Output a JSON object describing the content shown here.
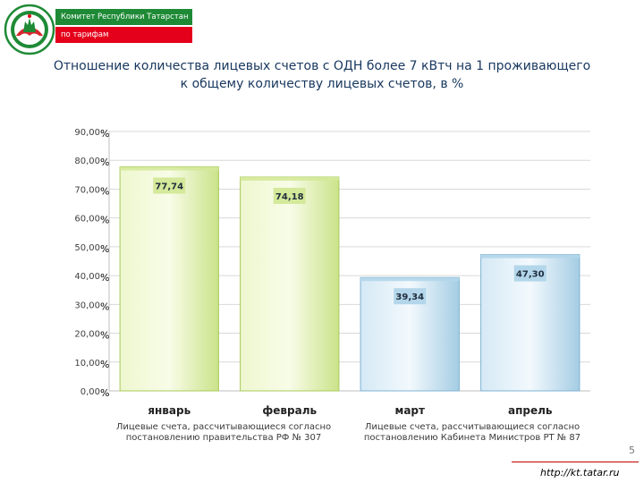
{
  "header": {
    "org_line1": "Комитет Республики Татарстан",
    "org_line2": "по тарифам"
  },
  "title": {
    "line1": "Отношение количества лицевых счетов с ОДН более 7 кВтч на 1 проживающего",
    "line2": "к общему количеству лицевых счетов, в %"
  },
  "chart_data": {
    "type": "bar",
    "categories": [
      "январь",
      "февраль",
      "март",
      "апрель"
    ],
    "values": [
      77.74,
      74.18,
      39.34,
      47.3
    ],
    "data_labels": [
      "77,74",
      "74,18",
      "39,34",
      "47,30"
    ],
    "yticks": [
      "0,00",
      "10,00",
      "20,00",
      "30,00",
      "40,00",
      "50,00",
      "60,00",
      "70,00",
      "80,00",
      "90,00"
    ],
    "percent_sign": "%",
    "ylim": [
      0,
      90
    ],
    "grid": true,
    "bar_colors": [
      "#d4e99a",
      "#d4e99a",
      "#b3d6ea",
      "#b3d6ea"
    ]
  },
  "groups": [
    {
      "text": "Лицевые счета, рассчитывающиеся согласно постановлению правительства РФ № 307"
    },
    {
      "text": "Лицевые счета, рассчитывающиеся согласно постановлению Кабинета Министров РТ № 87"
    }
  ],
  "footer": {
    "page_number": "5",
    "url": "http://kt.tatar.ru"
  },
  "colors": {
    "brand_green": "#1e8a36",
    "brand_red": "#e4001b",
    "title_blue": "#17375e"
  }
}
